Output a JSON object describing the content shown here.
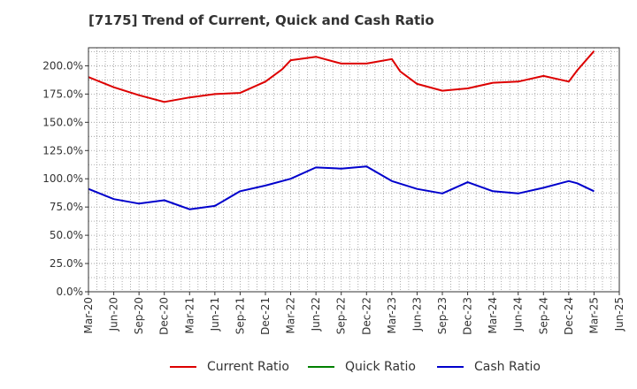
{
  "chart_data": {
    "type": "line",
    "title": "[7175]  Trend of Current, Quick and Cash Ratio",
    "xlabel": "",
    "ylabel": "",
    "ylim": [
      0,
      216
    ],
    "y_ticks": [
      0,
      25,
      50,
      75,
      100,
      125,
      150,
      175,
      200
    ],
    "y_tick_labels": [
      "0.0%",
      "25.0%",
      "50.0%",
      "75.0%",
      "100.0%",
      "125.0%",
      "150.0%",
      "175.0%",
      "200.0%"
    ],
    "x_ticks": [
      "Mar-20",
      "Jun-20",
      "Sep-20",
      "Dec-20",
      "Mar-21",
      "Jun-21",
      "Sep-21",
      "Dec-21",
      "Mar-22",
      "Jun-22",
      "Sep-22",
      "Dec-22",
      "Mar-23",
      "Jun-23",
      "Sep-23",
      "Dec-23",
      "Mar-24",
      "Jun-24",
      "Sep-24",
      "Dec-24",
      "Mar-25",
      "Jun-25"
    ],
    "grid": true,
    "legend_position": "bottom",
    "series": [
      {
        "name": "Current Ratio",
        "color": "#dd0000",
        "points": [
          [
            0,
            190
          ],
          [
            3,
            181
          ],
          [
            6,
            174
          ],
          [
            9,
            168
          ],
          [
            12,
            172
          ],
          [
            15,
            175
          ],
          [
            18,
            176
          ],
          [
            21,
            186
          ],
          [
            23,
            197
          ],
          [
            24,
            205
          ],
          [
            27,
            208
          ],
          [
            30,
            202
          ],
          [
            33,
            202
          ],
          [
            36,
            206
          ],
          [
            37,
            195
          ],
          [
            39,
            184
          ],
          [
            42,
            178
          ],
          [
            45,
            180
          ],
          [
            48,
            185
          ],
          [
            51,
            186
          ],
          [
            54,
            191
          ],
          [
            57,
            186
          ],
          [
            58,
            196
          ],
          [
            60,
            213
          ]
        ]
      },
      {
        "name": "Quick Ratio",
        "color": "#008000",
        "points": []
      },
      {
        "name": "Cash Ratio",
        "color": "#0000cc",
        "points": [
          [
            0,
            91
          ],
          [
            3,
            82
          ],
          [
            6,
            78
          ],
          [
            9,
            81
          ],
          [
            12,
            73
          ],
          [
            15,
            76
          ],
          [
            18,
            89
          ],
          [
            21,
            94
          ],
          [
            24,
            100
          ],
          [
            27,
            110
          ],
          [
            30,
            109
          ],
          [
            33,
            111
          ],
          [
            36,
            98
          ],
          [
            39,
            91
          ],
          [
            42,
            87
          ],
          [
            45,
            97
          ],
          [
            48,
            89
          ],
          [
            51,
            87
          ],
          [
            54,
            92
          ],
          [
            57,
            98
          ],
          [
            58,
            96
          ],
          [
            60,
            89
          ]
        ]
      }
    ]
  }
}
